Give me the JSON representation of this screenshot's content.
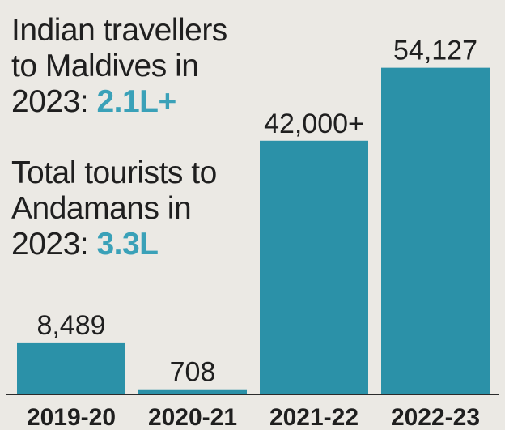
{
  "chart_data": {
    "type": "bar",
    "categories": [
      "2019-20",
      "2020-21",
      "2021-22",
      "2022-23"
    ],
    "values": [
      8489,
      708,
      42000,
      54127
    ],
    "data_labels": [
      "8,489",
      "708",
      "42,000+",
      "54,127"
    ],
    "title": "",
    "xlabel": "",
    "ylabel": "",
    "ylim": [
      0,
      56500
    ],
    "grid": false,
    "bar_color": "#2b91a8",
    "annotations": [
      {
        "text": "Indian travellers to Maldives in 2023:",
        "highlight": "2.1L+"
      },
      {
        "text": "Total tourists to Andamans in 2023:",
        "highlight": "3.3L"
      }
    ]
  }
}
